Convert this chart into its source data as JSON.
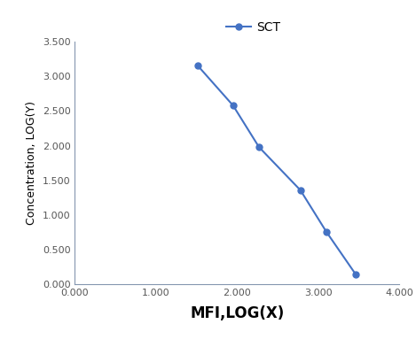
{
  "x": [
    1.51,
    1.95,
    2.27,
    2.78,
    3.1,
    3.46
  ],
  "y": [
    3.16,
    2.58,
    1.98,
    1.36,
    0.76,
    0.15
  ],
  "line_color": "#4472C4",
  "marker": "o",
  "marker_size": 5,
  "line_width": 1.5,
  "legend_label": "SCT",
  "xlabel": "MFI,LOG(X)",
  "ylabel": "Concentration, LOG(Y)",
  "xlim": [
    0.0,
    4.0
  ],
  "ylim": [
    0.0,
    3.5
  ],
  "xticks": [
    0.0,
    1.0,
    2.0,
    3.0,
    4.0
  ],
  "yticks": [
    0.0,
    0.5,
    1.0,
    1.5,
    2.0,
    2.5,
    3.0,
    3.5
  ],
  "xlabel_fontsize": 12,
  "ylabel_fontsize": 9,
  "legend_fontsize": 10,
  "tick_fontsize": 8,
  "spine_color": "#8496b0",
  "background_color": "#ffffff"
}
